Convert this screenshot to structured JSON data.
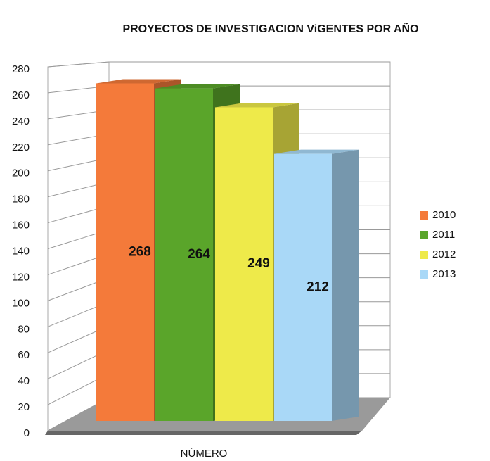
{
  "chart_data": {
    "type": "bar",
    "title": "PROYECTOS DE INVESTIGACION ViGENTES POR AÑO",
    "x_label": "NÚMERO",
    "categories": [
      "NÚMERO"
    ],
    "series": [
      {
        "name": "2010",
        "color": "#f47a3a",
        "values": [
          268
        ]
      },
      {
        "name": "2011",
        "color": "#5aa52a",
        "values": [
          264
        ]
      },
      {
        "name": "2012",
        "color": "#eeea4a",
        "values": [
          249
        ]
      },
      {
        "name": "2013",
        "color": "#a9d8f7",
        "values": [
          212
        ]
      }
    ],
    "ylim": [
      0,
      280
    ],
    "yticks": [
      0,
      20,
      40,
      60,
      80,
      100,
      120,
      140,
      160,
      180,
      200,
      220,
      240,
      260,
      280
    ],
    "grid": true,
    "legend": "right",
    "data_labels": true
  }
}
